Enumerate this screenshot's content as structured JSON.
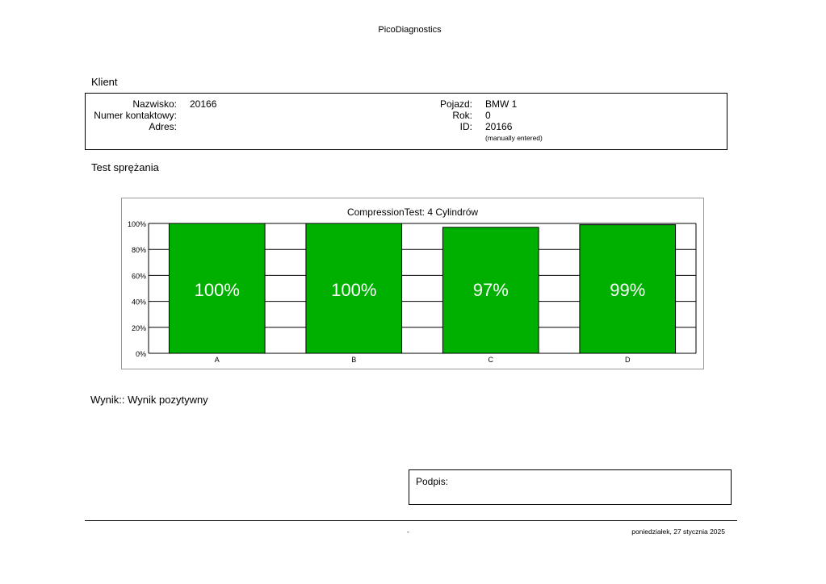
{
  "header": {
    "app_name": "PicoDiagnostics"
  },
  "client_section": {
    "title": "Klient",
    "name_label": "Nazwisko:",
    "name_value": "20166",
    "contact_label": "Numer kontaktowy:",
    "contact_value": "",
    "address_label": "Adres:",
    "address_value": "",
    "vehicle_label": "Pojazd:",
    "vehicle_value": "BMW 1",
    "year_label": "Rok:",
    "year_value": "0",
    "id_label": "ID:",
    "id_value": "20166",
    "id_note": "(manually entered)"
  },
  "test_section": {
    "title": "Test sprężania"
  },
  "chart_data": {
    "type": "bar",
    "title": "CompressionTest: 4 Cylindrów",
    "categories": [
      "A",
      "B",
      "C",
      "D"
    ],
    "values": [
      100,
      100,
      97,
      99
    ],
    "value_labels": [
      "100%",
      "100%",
      "97%",
      "99%"
    ],
    "ylim": [
      0,
      100
    ],
    "yticks": [
      0,
      20,
      40,
      60,
      80,
      100
    ],
    "ytick_labels": [
      "0%",
      "20%",
      "40%",
      "60%",
      "80%",
      "100%"
    ],
    "grid": true,
    "bar_color": "#00b000"
  },
  "result": {
    "text": "Wynik:: Wynik pozytywny"
  },
  "signature": {
    "label": "Podpis:"
  },
  "footer": {
    "center": "-",
    "date": "poniedziałek, 27 stycznia 2025"
  }
}
